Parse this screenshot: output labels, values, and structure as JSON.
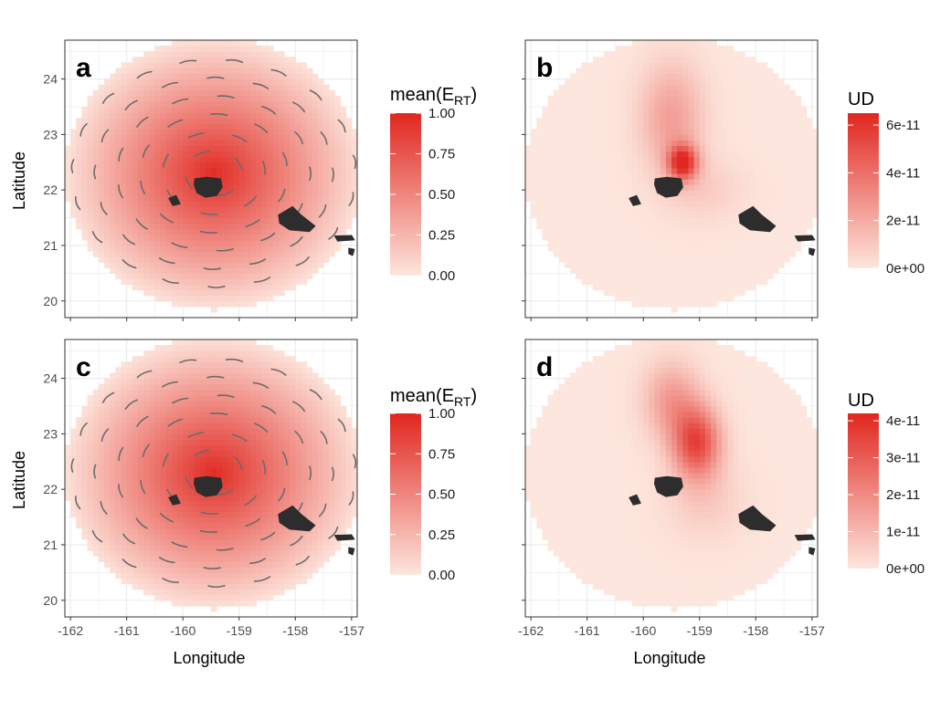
{
  "figure": {
    "xlabel": "Longitude",
    "ylabel": "Latitude",
    "x_ticks": [
      "-162",
      "-161",
      "-160",
      "-159",
      "-158",
      "-157"
    ],
    "y_ticks": [
      "20",
      "21",
      "22",
      "23",
      "24"
    ],
    "colors": {
      "low": "#fde6dd",
      "high": "#e0261f",
      "island": "#2d2d2d",
      "arrow": "#6b6b6b",
      "grid": "#ebebeb",
      "border": "#333333"
    }
  },
  "chart_data": [
    {
      "panel": "a",
      "type": "heatmap",
      "xlim": [
        -162.1,
        -156.9
      ],
      "ylim": [
        19.7,
        24.7
      ],
      "xlabel": "",
      "ylabel": "Latitude",
      "x_ticks": [
        -162,
        -161,
        -160,
        -159,
        -158,
        -157
      ],
      "y_ticks": [
        20,
        21,
        22,
        23,
        24
      ],
      "show_x_tick_labels": false,
      "show_y_tick_labels": true,
      "has_vectors": true,
      "field": {
        "center": [
          -159.45,
          22.3
        ],
        "radius_deg": 2.45,
        "peak_value": 1.0
      },
      "legend": {
        "title": "mean(E",
        "title_sub": "RT",
        "title_end": ")",
        "ticks": [
          "1.00",
          "0.75",
          "0.50",
          "0.25",
          "0.00"
        ],
        "tick_values": [
          1.0,
          0.75,
          0.5,
          0.25,
          0.0
        ],
        "max": 1.0
      }
    },
    {
      "panel": "b",
      "type": "heatmap",
      "xlim": [
        -162.1,
        -156.9
      ],
      "ylim": [
        19.7,
        24.7
      ],
      "xlabel": "",
      "ylabel": "",
      "x_ticks": [
        -162,
        -161,
        -160,
        -159,
        -158,
        -157
      ],
      "y_ticks": [
        20,
        21,
        22,
        23,
        24
      ],
      "show_x_tick_labels": false,
      "show_y_tick_labels": false,
      "has_vectors": false,
      "hotspots": [
        {
          "lon": -159.3,
          "lat": 22.5,
          "value": 6.2e-11,
          "sx": 0.18,
          "sy": 0.22
        },
        {
          "lon": -159.5,
          "lat": 23.3,
          "value": 2.4e-11,
          "sx": 0.4,
          "sy": 0.7
        },
        {
          "lon": -158.9,
          "lat": 22.0,
          "value": 8e-12,
          "sx": 0.5,
          "sy": 0.4
        }
      ],
      "legend": {
        "title": "UD",
        "ticks": [
          "6e-11",
          "4e-11",
          "2e-11",
          "0e+00"
        ],
        "tick_values": [
          6e-11,
          4e-11,
          2e-11,
          0
        ],
        "max": 6.5e-11
      }
    },
    {
      "panel": "c",
      "type": "heatmap",
      "xlim": [
        -162.1,
        -156.9
      ],
      "ylim": [
        19.7,
        24.7
      ],
      "xlabel": "Longitude",
      "ylabel": "Latitude",
      "x_ticks": [
        -162,
        -161,
        -160,
        -159,
        -158,
        -157
      ],
      "y_ticks": [
        20,
        21,
        22,
        23,
        24
      ],
      "show_x_tick_labels": true,
      "show_y_tick_labels": true,
      "has_vectors": true,
      "field": {
        "center": [
          -159.45,
          22.3
        ],
        "radius_deg": 2.45,
        "peak_value": 1.0
      },
      "legend": {
        "title": "mean(E",
        "title_sub": "RT",
        "title_end": ")",
        "ticks": [
          "1.00",
          "0.75",
          "0.50",
          "0.25",
          "0.00"
        ],
        "tick_values": [
          1.0,
          0.75,
          0.5,
          0.25,
          0.0
        ],
        "max": 1.0
      }
    },
    {
      "panel": "d",
      "type": "heatmap",
      "xlim": [
        -162.1,
        -156.9
      ],
      "ylim": [
        19.7,
        24.7
      ],
      "xlabel": "Longitude",
      "ylabel": "",
      "x_ticks": [
        -162,
        -161,
        -160,
        -159,
        -158,
        -157
      ],
      "y_ticks": [
        20,
        21,
        22,
        23,
        24
      ],
      "show_x_tick_labels": true,
      "show_y_tick_labels": false,
      "has_vectors": false,
      "hotspots": [
        {
          "lon": -159.05,
          "lat": 22.85,
          "value": 3.4e-11,
          "sx": 0.3,
          "sy": 0.45
        },
        {
          "lon": -159.5,
          "lat": 23.6,
          "value": 1.6e-11,
          "sx": 0.35,
          "sy": 0.5
        },
        {
          "lon": -158.9,
          "lat": 21.8,
          "value": 6e-12,
          "sx": 0.5,
          "sy": 0.5
        }
      ],
      "legend": {
        "title": "UD",
        "ticks": [
          "4e-11",
          "3e-11",
          "2e-11",
          "1e-11",
          "0e+00"
        ],
        "tick_values": [
          4e-11,
          3e-11,
          2e-11,
          1e-11,
          0
        ],
        "max": 4.2e-11
      }
    }
  ]
}
